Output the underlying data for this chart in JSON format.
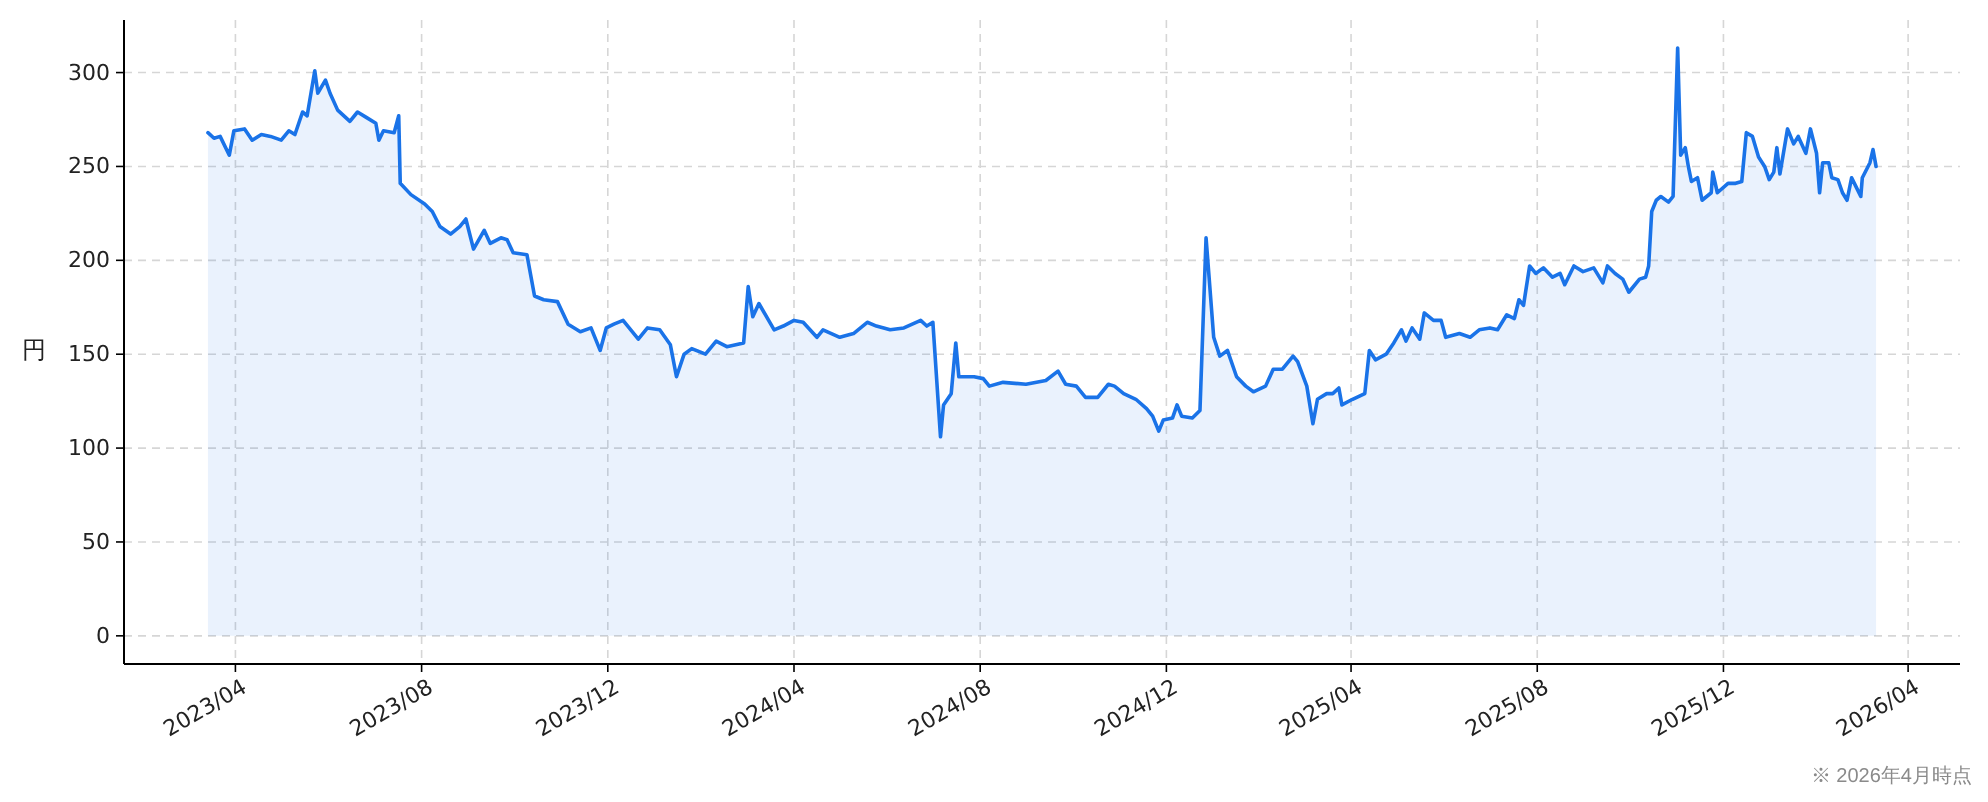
{
  "chart_data": {
    "type": "area",
    "ylabel": "円",
    "annotations": [
      "※ 2026年4月時点"
    ],
    "color": "#1a73e8",
    "line_style": "solid",
    "grid": true,
    "xlim": [
      "2023-01-18",
      "2026-05-05"
    ],
    "ylim": [
      -15,
      328
    ],
    "xticks": [
      {
        "value": "2023-04-01",
        "label": "2023/04"
      },
      {
        "value": "2023-08-01",
        "label": "2023/08"
      },
      {
        "value": "2023-12-01",
        "label": "2023/12"
      },
      {
        "value": "2024-04-01",
        "label": "2024/04"
      },
      {
        "value": "2024-08-01",
        "label": "2024/08"
      },
      {
        "value": "2024-12-01",
        "label": "2024/12"
      },
      {
        "value": "2025-04-01",
        "label": "2025/04"
      },
      {
        "value": "2025-08-01",
        "label": "2025/08"
      },
      {
        "value": "2025-12-01",
        "label": "2025/12"
      },
      {
        "value": "2026-04-01",
        "label": "2026/04"
      }
    ],
    "yticks": [
      0,
      50,
      100,
      150,
      200,
      250,
      300
    ],
    "x": [
      "2023-03-14",
      "2023-03-18",
      "2023-03-22",
      "2023-03-28",
      "2023-03-31",
      "2023-04-07",
      "2023-04-12",
      "2023-04-18",
      "2023-04-24",
      "2023-05-01",
      "2023-05-06",
      "2023-05-10",
      "2023-05-15",
      "2023-05-18",
      "2023-05-23",
      "2023-05-25",
      "2023-05-30",
      "2023-06-02",
      "2023-06-07",
      "2023-06-15",
      "2023-06-20",
      "2023-06-26",
      "2023-07-02",
      "2023-07-04",
      "2023-07-07",
      "2023-07-14",
      "2023-07-17",
      "2023-07-18",
      "2023-07-25",
      "2023-08-03",
      "2023-08-08",
      "2023-08-13",
      "2023-08-20",
      "2023-08-26",
      "2023-08-30",
      "2023-09-04",
      "2023-09-11",
      "2023-09-15",
      "2023-09-22",
      "2023-09-26",
      "2023-09-30",
      "2023-10-09",
      "2023-10-14",
      "2023-10-20",
      "2023-10-29",
      "2023-11-05",
      "2023-11-13",
      "2023-11-20",
      "2023-11-26",
      "2023-11-30",
      "2023-12-05",
      "2023-12-11",
      "2023-12-21",
      "2023-12-27",
      "2024-01-04",
      "2024-01-11",
      "2024-01-15",
      "2024-01-20",
      "2024-01-25",
      "2024-02-03",
      "2024-02-10",
      "2024-02-17",
      "2024-02-28",
      "2024-03-02",
      "2024-03-05",
      "2024-03-09",
      "2024-03-19",
      "2024-03-25",
      "2024-04-01",
      "2024-04-07",
      "2024-04-16",
      "2024-04-20",
      "2024-05-01",
      "2024-05-10",
      "2024-05-19",
      "2024-05-25",
      "2024-06-03",
      "2024-06-12",
      "2024-06-23",
      "2024-06-27",
      "2024-07-01",
      "2024-07-06",
      "2024-07-08",
      "2024-07-13",
      "2024-07-16",
      "2024-07-18",
      "2024-07-28",
      "2024-08-03",
      "2024-08-07",
      "2024-08-16",
      "2024-08-31",
      "2024-09-13",
      "2024-09-21",
      "2024-09-26",
      "2024-10-03",
      "2024-10-09",
      "2024-10-17",
      "2024-10-24",
      "2024-10-28",
      "2024-11-03",
      "2024-11-11",
      "2024-11-18",
      "2024-11-22",
      "2024-11-26",
      "2024-11-29",
      "2024-12-05",
      "2024-12-08",
      "2024-12-11",
      "2024-12-18",
      "2024-12-23",
      "2024-12-27",
      "2025-01-01",
      "2025-01-05",
      "2025-01-10",
      "2025-01-16",
      "2025-01-22",
      "2025-01-27",
      "2025-02-04",
      "2025-02-09",
      "2025-02-15",
      "2025-02-22",
      "2025-02-25",
      "2025-03-03",
      "2025-03-07",
      "2025-03-10",
      "2025-03-16",
      "2025-03-20",
      "2025-03-24",
      "2025-03-26",
      "2025-04-02",
      "2025-04-10",
      "2025-04-13",
      "2025-04-17",
      "2025-04-24",
      "2025-04-29",
      "2025-05-04",
      "2025-05-07",
      "2025-05-11",
      "2025-05-16",
      "2025-05-19",
      "2025-05-25",
      "2025-05-30",
      "2025-06-02",
      "2025-06-11",
      "2025-06-18",
      "2025-06-24",
      "2025-07-01",
      "2025-07-06",
      "2025-07-12",
      "2025-07-17",
      "2025-07-20",
      "2025-07-23",
      "2025-07-27",
      "2025-07-31",
      "2025-08-05",
      "2025-08-11",
      "2025-08-16",
      "2025-08-19",
      "2025-08-25",
      "2025-08-31",
      "2025-09-07",
      "2025-09-13",
      "2025-09-16",
      "2025-09-21",
      "2025-09-26",
      "2025-09-30",
      "2025-10-07",
      "2025-10-11",
      "2025-10-13",
      "2025-10-15",
      "2025-10-18",
      "2025-10-21",
      "2025-10-26",
      "2025-10-29",
      "2025-11-01",
      "2025-11-03",
      "2025-11-06",
      "2025-11-08",
      "2025-11-10",
      "2025-11-14",
      "2025-11-17",
      "2025-11-23",
      "2025-11-24",
      "2025-11-27",
      "2025-12-04",
      "2025-12-09",
      "2025-12-13",
      "2025-12-16",
      "2025-12-20",
      "2025-12-24",
      "2025-12-28",
      "2025-12-31",
      "2026-01-03",
      "2026-01-05",
      "2026-01-07",
      "2026-01-12",
      "2026-01-16",
      "2026-01-19",
      "2026-01-24",
      "2026-01-27",
      "2026-01-31",
      "2026-02-02",
      "2026-02-04",
      "2026-02-08",
      "2026-02-10",
      "2026-02-14",
      "2026-02-17",
      "2026-02-20",
      "2026-02-23",
      "2026-02-26",
      "2026-03-01",
      "2026-03-02",
      "2026-03-07",
      "2026-03-09",
      "2026-03-11"
    ],
    "values": [
      268,
      265,
      266,
      256,
      269,
      270,
      264,
      267,
      266,
      264,
      269,
      267,
      279,
      277,
      301,
      289,
      296,
      289,
      280,
      274,
      279,
      276,
      273,
      264,
      269,
      268,
      277,
      241,
      235,
      230,
      226,
      218,
      214,
      218,
      222,
      206,
      216,
      209,
      212,
      211,
      204,
      203,
      181,
      179,
      178,
      166,
      162,
      164,
      152,
      164,
      166,
      168,
      158,
      164,
      163,
      155,
      138,
      150,
      153,
      150,
      157,
      154,
      156,
      186,
      170,
      177,
      163,
      165,
      168,
      167,
      159,
      163,
      159,
      161,
      167,
      165,
      163,
      164,
      168,
      165,
      167,
      106,
      123,
      129,
      156,
      138,
      138,
      137,
      133,
      135,
      134,
      136,
      141,
      134,
      133,
      127,
      127,
      134,
      133,
      129,
      126,
      121,
      117,
      109,
      115,
      116,
      123,
      117,
      116,
      120,
      212,
      159,
      149,
      152,
      138,
      133,
      130,
      133,
      142,
      142,
      149,
      146,
      133,
      113,
      126,
      129,
      129,
      132,
      123,
      126,
      129,
      152,
      147,
      150,
      156,
      163,
      157,
      164,
      158,
      172,
      168,
      168,
      159,
      161,
      159,
      163,
      164,
      163,
      171,
      169,
      179,
      176,
      197,
      193,
      196,
      191,
      193,
      187,
      197,
      194,
      196,
      188,
      197,
      193,
      190,
      183,
      190,
      191,
      197,
      226,
      232,
      234,
      231,
      234,
      313,
      256,
      260,
      250,
      242,
      244,
      232,
      236,
      247,
      236,
      241,
      241,
      242,
      268,
      266,
      255,
      250,
      243,
      247,
      260,
      246,
      270,
      262,
      266,
      257,
      270,
      257,
      236,
      252,
      252,
      244,
      243,
      236,
      232,
      244,
      239,
      234,
      244,
      252,
      259,
      250
    ]
  }
}
